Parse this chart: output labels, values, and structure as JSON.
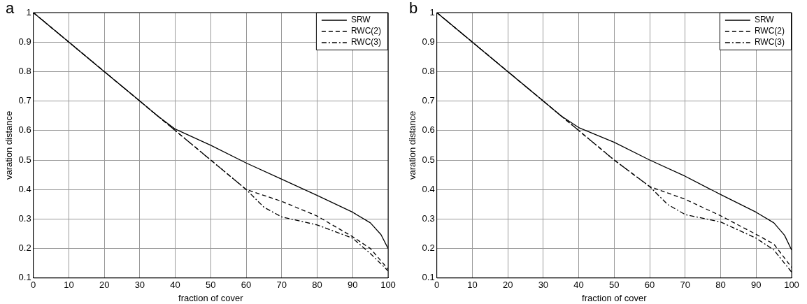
{
  "chart_data": [
    {
      "type": "line",
      "title": "a",
      "xlabel": "fraction of cover",
      "ylabel": "varation distance",
      "xlim": [
        0,
        100
      ],
      "ylim": [
        0.1,
        1
      ],
      "xticks": [
        0,
        10,
        20,
        30,
        40,
        50,
        60,
        70,
        80,
        90,
        100
      ],
      "yticks": [
        0.1,
        0.2,
        0.3,
        0.4,
        0.5,
        0.6,
        0.7,
        0.8,
        0.9,
        1
      ],
      "grid": true,
      "legend": "top right",
      "marker": "none",
      "series": [
        {
          "name": "SRW",
          "color": "#000000",
          "line_style": "solid",
          "x": [
            0,
            10,
            20,
            30,
            35,
            40,
            50,
            60,
            70,
            80,
            90,
            95,
            98,
            100
          ],
          "values": [
            1,
            0.9,
            0.8,
            0.7,
            0.65,
            0.605,
            0.55,
            0.49,
            0.435,
            0.38,
            0.323,
            0.287,
            0.247,
            0.2
          ]
        },
        {
          "name": "RWC(2)",
          "color": "#000000",
          "line_style": "dashed",
          "x": [
            0,
            10,
            20,
            30,
            35,
            40,
            50,
            60,
            70,
            80,
            90,
            95,
            100
          ],
          "values": [
            1,
            0.9,
            0.8,
            0.7,
            0.65,
            0.6,
            0.5,
            0.4,
            0.36,
            0.31,
            0.24,
            0.2,
            0.13
          ]
        },
        {
          "name": "RWC(3)",
          "color": "#000000",
          "line_style": "dashdot",
          "x": [
            0,
            10,
            20,
            30,
            35,
            40,
            50,
            60,
            65,
            70,
            80,
            90,
            95,
            100
          ],
          "values": [
            1,
            0.9,
            0.8,
            0.7,
            0.65,
            0.6,
            0.5,
            0.4,
            0.34,
            0.307,
            0.28,
            0.235,
            0.183,
            0.124
          ]
        }
      ]
    },
    {
      "type": "line",
      "title": "b",
      "xlabel": "fraction of cover",
      "ylabel": "varation distance",
      "xlim": [
        0,
        100
      ],
      "ylim": [
        0.1,
        1
      ],
      "xticks": [
        0,
        10,
        20,
        30,
        40,
        50,
        60,
        70,
        80,
        90,
        100
      ],
      "yticks": [
        0.1,
        0.2,
        0.3,
        0.4,
        0.5,
        0.6,
        0.7,
        0.8,
        0.9,
        1
      ],
      "grid": true,
      "legend": "top right",
      "marker": "none",
      "series": [
        {
          "name": "SRW",
          "color": "#000000",
          "line_style": "solid",
          "x": [
            0,
            10,
            20,
            30,
            35,
            40,
            50,
            60,
            70,
            80,
            90,
            95,
            98,
            100
          ],
          "values": [
            1,
            0.9,
            0.8,
            0.7,
            0.65,
            0.61,
            0.56,
            0.5,
            0.445,
            0.383,
            0.323,
            0.287,
            0.245,
            0.195
          ]
        },
        {
          "name": "RWC(2)",
          "color": "#000000",
          "line_style": "dashed",
          "x": [
            0,
            10,
            20,
            30,
            35,
            40,
            50,
            60,
            70,
            80,
            90,
            95,
            100
          ],
          "values": [
            1,
            0.9,
            0.8,
            0.7,
            0.65,
            0.6,
            0.5,
            0.41,
            0.367,
            0.311,
            0.248,
            0.215,
            0.136
          ]
        },
        {
          "name": "RWC(3)",
          "color": "#000000",
          "line_style": "dashdot",
          "x": [
            0,
            10,
            20,
            30,
            35,
            40,
            50,
            60,
            65,
            70,
            80,
            90,
            95,
            100
          ],
          "values": [
            1,
            0.9,
            0.8,
            0.7,
            0.65,
            0.6,
            0.5,
            0.41,
            0.35,
            0.315,
            0.29,
            0.235,
            0.195,
            0.12
          ]
        }
      ]
    }
  ]
}
